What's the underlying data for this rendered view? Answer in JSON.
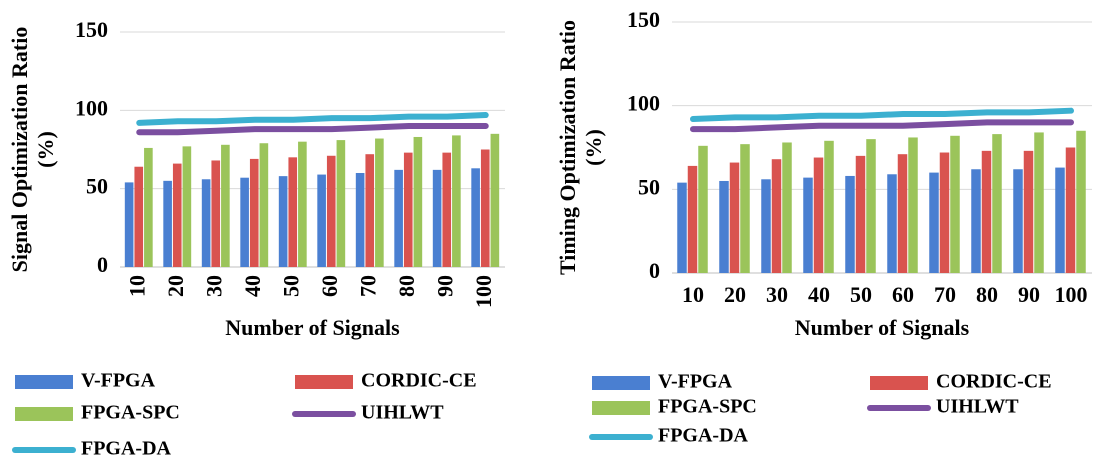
{
  "chart_data": [
    {
      "type": "bar",
      "xlabel": "Number of Signals",
      "ylabel": [
        "Signal Optimization Ratio",
        "(%)"
      ],
      "categories": [
        "10",
        "20",
        "30",
        "40",
        "50",
        "60",
        "70",
        "80",
        "90",
        "100"
      ],
      "xtick_rotation": -90,
      "ylim": [
        0,
        150
      ],
      "yticks": [
        0,
        50,
        100,
        150
      ],
      "grid": true,
      "series": [
        {
          "name": "V-FPGA",
          "type": "bar",
          "color": "#4a7fd1",
          "values": [
            54,
            55,
            56,
            57,
            58,
            59,
            60,
            62,
            62,
            63
          ]
        },
        {
          "name": "CORDIC-CE",
          "type": "bar",
          "color": "#d9534f",
          "values": [
            64,
            66,
            68,
            69,
            70,
            71,
            72,
            73,
            73,
            75
          ]
        },
        {
          "name": "FPGA-SPC",
          "type": "bar",
          "color": "#9bc45a",
          "values": [
            76,
            77,
            78,
            79,
            80,
            81,
            82,
            83,
            84,
            85
          ]
        },
        {
          "name": "UIHLWT",
          "type": "line",
          "color": "#7b4fa0",
          "values": [
            86,
            86,
            87,
            88,
            88,
            88,
            89,
            90,
            90,
            90
          ]
        },
        {
          "name": "FPGA-DA",
          "type": "line",
          "color": "#3cb0d0",
          "values": [
            92,
            93,
            93,
            94,
            94,
            95,
            95,
            96,
            96,
            97
          ]
        }
      ]
    },
    {
      "type": "bar",
      "xlabel": "Number of Signals",
      "ylabel": [
        "Timing Optimization Ratio",
        "(%)"
      ],
      "categories": [
        "10",
        "20",
        "30",
        "40",
        "50",
        "60",
        "70",
        "80",
        "90",
        "100"
      ],
      "xtick_rotation": 0,
      "ylim": [
        0,
        150
      ],
      "yticks": [
        0,
        50,
        100,
        150
      ],
      "grid": true,
      "series": [
        {
          "name": "V-FPGA",
          "type": "bar",
          "color": "#4a7fd1",
          "values": [
            54,
            55,
            56,
            57,
            58,
            59,
            60,
            62,
            62,
            63
          ]
        },
        {
          "name": "CORDIC-CE",
          "type": "bar",
          "color": "#d9534f",
          "values": [
            64,
            66,
            68,
            69,
            70,
            71,
            72,
            73,
            73,
            75
          ]
        },
        {
          "name": "FPGA-SPC",
          "type": "bar",
          "color": "#9bc45a",
          "values": [
            76,
            77,
            78,
            79,
            80,
            81,
            82,
            83,
            84,
            85
          ]
        },
        {
          "name": "UIHLWT",
          "type": "line",
          "color": "#7b4fa0",
          "values": [
            86,
            86,
            87,
            88,
            88,
            88,
            89,
            90,
            90,
            90
          ]
        },
        {
          "name": "FPGA-DA",
          "type": "line",
          "color": "#3cb0d0",
          "values": [
            92,
            93,
            93,
            94,
            94,
            95,
            95,
            96,
            96,
            97
          ]
        }
      ]
    }
  ]
}
